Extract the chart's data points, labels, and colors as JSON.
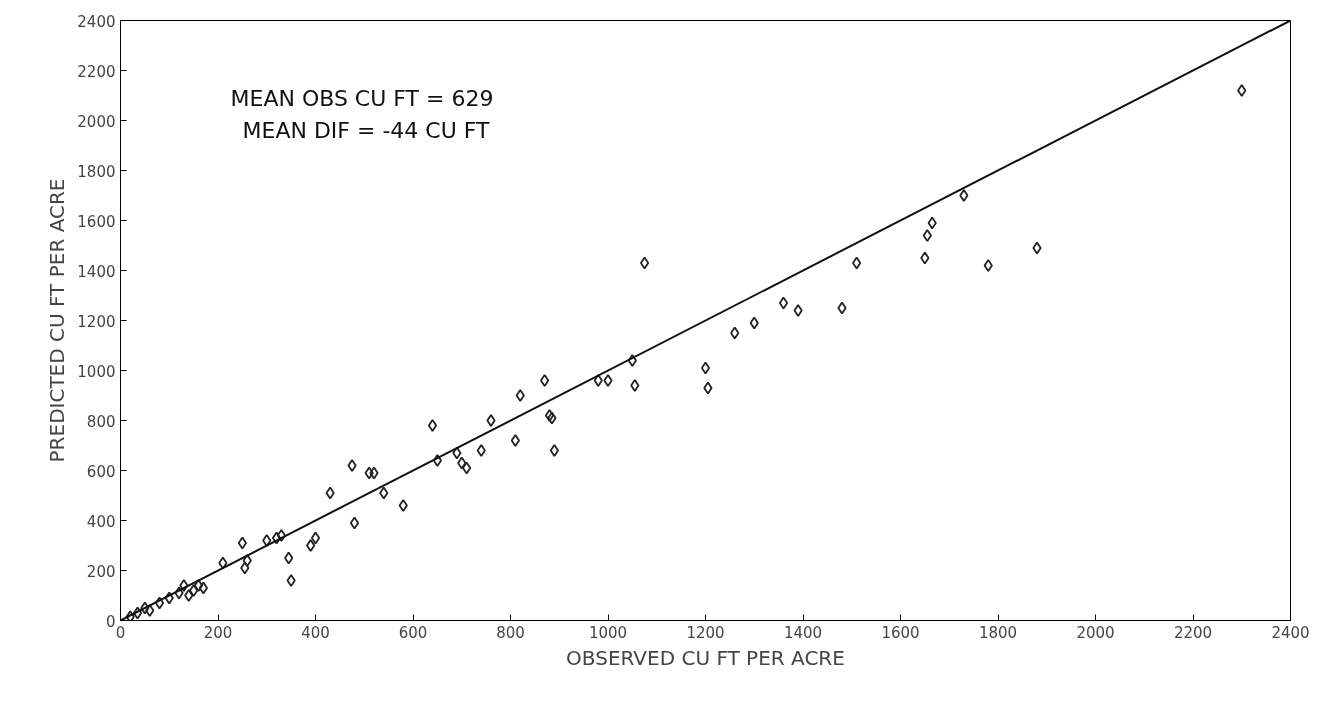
{
  "chart_data": {
    "type": "scatter",
    "xlabel": "OBSERVED CU FT PER ACRE",
    "ylabel": "PREDICTED CU FT PER ACRE",
    "xlim": [
      0,
      2400
    ],
    "ylim": [
      0,
      2400
    ],
    "xticks": [
      0,
      200,
      400,
      600,
      800,
      1000,
      1200,
      1400,
      1600,
      1800,
      2000,
      2200,
      2400
    ],
    "yticks": [
      0,
      200,
      400,
      600,
      800,
      1000,
      1200,
      1400,
      1600,
      1800,
      2000,
      2200,
      2400
    ],
    "grid": false,
    "annotations": [
      "MEAN OBS CU FT = 629",
      "MEAN DIF = -44 CU FT"
    ],
    "series": [
      {
        "marker": "diamond",
        "color": "#222222",
        "x": [
          20,
          35,
          50,
          60,
          80,
          100,
          120,
          130,
          140,
          150,
          160,
          170,
          210,
          250,
          255,
          260,
          300,
          320,
          330,
          345,
          350,
          390,
          400,
          430,
          475,
          480,
          510,
          520,
          540,
          580,
          640,
          650,
          690,
          700,
          710,
          740,
          760,
          810,
          820,
          870,
          880,
          885,
          890,
          980,
          1000,
          1050,
          1055,
          1075,
          1200,
          1205,
          1260,
          1300,
          1360,
          1390,
          1480,
          1510,
          1650,
          1655,
          1665,
          1730,
          1780,
          1880,
          2300
        ],
        "values": [
          15,
          30,
          50,
          40,
          70,
          90,
          110,
          140,
          100,
          120,
          140,
          130,
          230,
          310,
          210,
          240,
          320,
          330,
          340,
          250,
          160,
          300,
          330,
          510,
          620,
          390,
          590,
          590,
          510,
          460,
          780,
          640,
          670,
          630,
          610,
          680,
          800,
          720,
          900,
          960,
          820,
          810,
          680,
          960,
          960,
          1040,
          940,
          1430,
          1010,
          930,
          1150,
          1190,
          1270,
          1240,
          1250,
          1430,
          1450,
          1540,
          1590,
          1700,
          1420,
          1490,
          2120
        ]
      },
      {
        "type": "line",
        "color": "#111111",
        "x": [
          0,
          2400
        ],
        "values": [
          0,
          2400
        ]
      }
    ]
  }
}
